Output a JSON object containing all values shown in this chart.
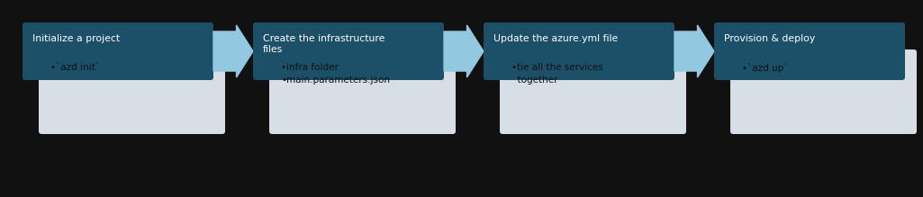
{
  "background_color": "#111111",
  "dark_box_color": "#1b5068",
  "light_box_color": "#d8dee6",
  "arrow_color": "#92c8e0",
  "title_text_color": "#ffffff",
  "body_text_color": "#111111",
  "steps": [
    {
      "title": "Initialize a project",
      "bullets": [
        "•`azd init`"
      ]
    },
    {
      "title": "Create the infrastructure\nfiles",
      "bullets": [
        "•infra folder",
        "•main.parameters.json"
      ]
    },
    {
      "title": "Update the azure.yml file",
      "bullets": [
        "•tie all the services\n  together"
      ]
    },
    {
      "title": "Provision & deploy",
      "bullets": [
        "•`azd up`"
      ]
    }
  ],
  "figsize": [
    10.25,
    2.19
  ],
  "dpi": 100
}
